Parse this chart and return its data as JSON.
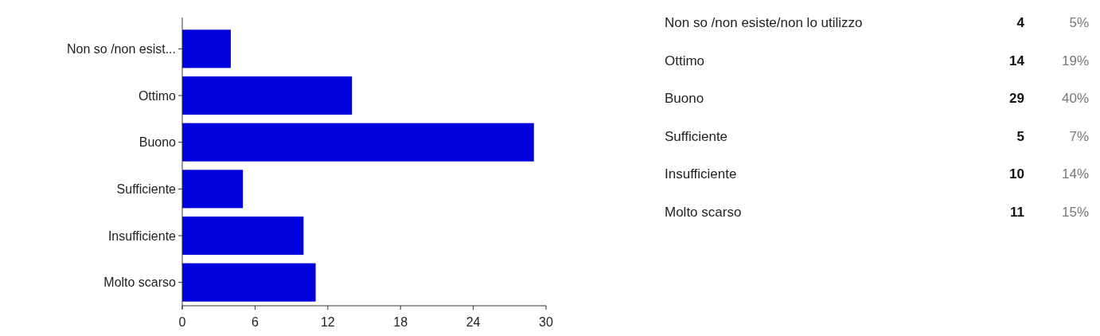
{
  "chart_data": [
    {
      "type": "bar",
      "orientation": "horizontal",
      "categories": [
        "Non so /non esist...",
        "Ottimo",
        "Buono",
        "Sufficiente",
        "Insufficiente",
        "Molto scarso"
      ],
      "values": [
        4,
        14,
        29,
        5,
        10,
        11
      ],
      "color": "#0000dd",
      "xlim": [
        0,
        30
      ],
      "xticks": [
        0,
        6,
        12,
        18,
        24,
        30
      ],
      "grid": false
    },
    {
      "type": "other",
      "categories": [
        "Non so /non esiste/non lo utilizzo",
        "Ottimo",
        "Buono",
        "Sufficiente",
        "Insufficiente",
        "Molto scarso"
      ],
      "values": [
        4,
        14,
        29,
        5,
        10,
        11
      ],
      "data_labels": true,
      "annotations": [
        "5%",
        "19%",
        "40%",
        "7%",
        "14%",
        "15%"
      ]
    }
  ]
}
